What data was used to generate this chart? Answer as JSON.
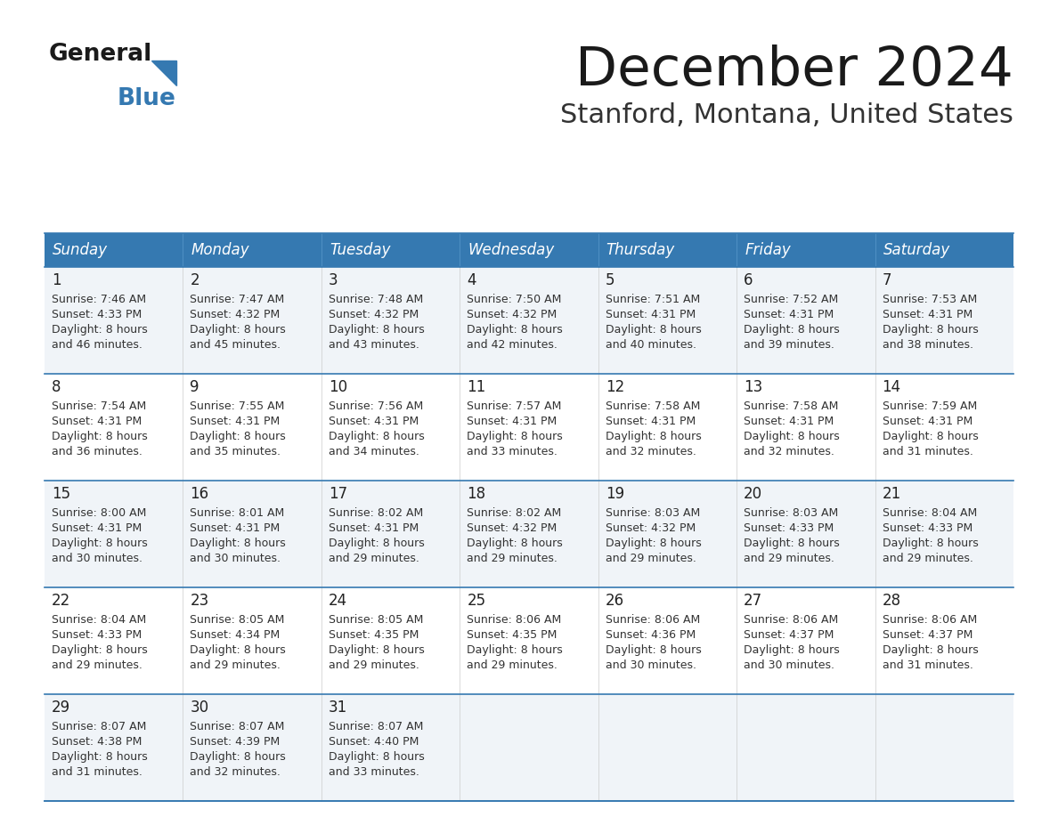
{
  "title": "December 2024",
  "subtitle": "Stanford, Montana, United States",
  "header_color": "#3579b1",
  "header_text_color": "#ffffff",
  "days_of_week": [
    "Sunday",
    "Monday",
    "Tuesday",
    "Wednesday",
    "Thursday",
    "Friday",
    "Saturday"
  ],
  "cell_bg_row0": "#f0f4f8",
  "cell_bg_row1": "#ffffff",
  "divider_color": "#3579b1",
  "title_color": "#1a1a1a",
  "subtitle_color": "#333333",
  "logo_general_color": "#1a1a1a",
  "logo_blue_color": "#3579b1",
  "text_color": "#333333",
  "calendar_data": [
    {
      "day": 1,
      "col": 0,
      "row": 0,
      "sunrise": "7:46 AM",
      "sunset": "4:33 PM",
      "daylight_hrs": 8,
      "daylight_min": 46
    },
    {
      "day": 2,
      "col": 1,
      "row": 0,
      "sunrise": "7:47 AM",
      "sunset": "4:32 PM",
      "daylight_hrs": 8,
      "daylight_min": 45
    },
    {
      "day": 3,
      "col": 2,
      "row": 0,
      "sunrise": "7:48 AM",
      "sunset": "4:32 PM",
      "daylight_hrs": 8,
      "daylight_min": 43
    },
    {
      "day": 4,
      "col": 3,
      "row": 0,
      "sunrise": "7:50 AM",
      "sunset": "4:32 PM",
      "daylight_hrs": 8,
      "daylight_min": 42
    },
    {
      "day": 5,
      "col": 4,
      "row": 0,
      "sunrise": "7:51 AM",
      "sunset": "4:31 PM",
      "daylight_hrs": 8,
      "daylight_min": 40
    },
    {
      "day": 6,
      "col": 5,
      "row": 0,
      "sunrise": "7:52 AM",
      "sunset": "4:31 PM",
      "daylight_hrs": 8,
      "daylight_min": 39
    },
    {
      "day": 7,
      "col": 6,
      "row": 0,
      "sunrise": "7:53 AM",
      "sunset": "4:31 PM",
      "daylight_hrs": 8,
      "daylight_min": 38
    },
    {
      "day": 8,
      "col": 0,
      "row": 1,
      "sunrise": "7:54 AM",
      "sunset": "4:31 PM",
      "daylight_hrs": 8,
      "daylight_min": 36
    },
    {
      "day": 9,
      "col": 1,
      "row": 1,
      "sunrise": "7:55 AM",
      "sunset": "4:31 PM",
      "daylight_hrs": 8,
      "daylight_min": 35
    },
    {
      "day": 10,
      "col": 2,
      "row": 1,
      "sunrise": "7:56 AM",
      "sunset": "4:31 PM",
      "daylight_hrs": 8,
      "daylight_min": 34
    },
    {
      "day": 11,
      "col": 3,
      "row": 1,
      "sunrise": "7:57 AM",
      "sunset": "4:31 PM",
      "daylight_hrs": 8,
      "daylight_min": 33
    },
    {
      "day": 12,
      "col": 4,
      "row": 1,
      "sunrise": "7:58 AM",
      "sunset": "4:31 PM",
      "daylight_hrs": 8,
      "daylight_min": 32
    },
    {
      "day": 13,
      "col": 5,
      "row": 1,
      "sunrise": "7:58 AM",
      "sunset": "4:31 PM",
      "daylight_hrs": 8,
      "daylight_min": 32
    },
    {
      "day": 14,
      "col": 6,
      "row": 1,
      "sunrise": "7:59 AM",
      "sunset": "4:31 PM",
      "daylight_hrs": 8,
      "daylight_min": 31
    },
    {
      "day": 15,
      "col": 0,
      "row": 2,
      "sunrise": "8:00 AM",
      "sunset": "4:31 PM",
      "daylight_hrs": 8,
      "daylight_min": 30
    },
    {
      "day": 16,
      "col": 1,
      "row": 2,
      "sunrise": "8:01 AM",
      "sunset": "4:31 PM",
      "daylight_hrs": 8,
      "daylight_min": 30
    },
    {
      "day": 17,
      "col": 2,
      "row": 2,
      "sunrise": "8:02 AM",
      "sunset": "4:31 PM",
      "daylight_hrs": 8,
      "daylight_min": 29
    },
    {
      "day": 18,
      "col": 3,
      "row": 2,
      "sunrise": "8:02 AM",
      "sunset": "4:32 PM",
      "daylight_hrs": 8,
      "daylight_min": 29
    },
    {
      "day": 19,
      "col": 4,
      "row": 2,
      "sunrise": "8:03 AM",
      "sunset": "4:32 PM",
      "daylight_hrs": 8,
      "daylight_min": 29
    },
    {
      "day": 20,
      "col": 5,
      "row": 2,
      "sunrise": "8:03 AM",
      "sunset": "4:33 PM",
      "daylight_hrs": 8,
      "daylight_min": 29
    },
    {
      "day": 21,
      "col": 6,
      "row": 2,
      "sunrise": "8:04 AM",
      "sunset": "4:33 PM",
      "daylight_hrs": 8,
      "daylight_min": 29
    },
    {
      "day": 22,
      "col": 0,
      "row": 3,
      "sunrise": "8:04 AM",
      "sunset": "4:33 PM",
      "daylight_hrs": 8,
      "daylight_min": 29
    },
    {
      "day": 23,
      "col": 1,
      "row": 3,
      "sunrise": "8:05 AM",
      "sunset": "4:34 PM",
      "daylight_hrs": 8,
      "daylight_min": 29
    },
    {
      "day": 24,
      "col": 2,
      "row": 3,
      "sunrise": "8:05 AM",
      "sunset": "4:35 PM",
      "daylight_hrs": 8,
      "daylight_min": 29
    },
    {
      "day": 25,
      "col": 3,
      "row": 3,
      "sunrise": "8:06 AM",
      "sunset": "4:35 PM",
      "daylight_hrs": 8,
      "daylight_min": 29
    },
    {
      "day": 26,
      "col": 4,
      "row": 3,
      "sunrise": "8:06 AM",
      "sunset": "4:36 PM",
      "daylight_hrs": 8,
      "daylight_min": 30
    },
    {
      "day": 27,
      "col": 5,
      "row": 3,
      "sunrise": "8:06 AM",
      "sunset": "4:37 PM",
      "daylight_hrs": 8,
      "daylight_min": 30
    },
    {
      "day": 28,
      "col": 6,
      "row": 3,
      "sunrise": "8:06 AM",
      "sunset": "4:37 PM",
      "daylight_hrs": 8,
      "daylight_min": 31
    },
    {
      "day": 29,
      "col": 0,
      "row": 4,
      "sunrise": "8:07 AM",
      "sunset": "4:38 PM",
      "daylight_hrs": 8,
      "daylight_min": 31
    },
    {
      "day": 30,
      "col": 1,
      "row": 4,
      "sunrise": "8:07 AM",
      "sunset": "4:39 PM",
      "daylight_hrs": 8,
      "daylight_min": 32
    },
    {
      "day": 31,
      "col": 2,
      "row": 4,
      "sunrise": "8:07 AM",
      "sunset": "4:40 PM",
      "daylight_hrs": 8,
      "daylight_min": 33
    }
  ]
}
